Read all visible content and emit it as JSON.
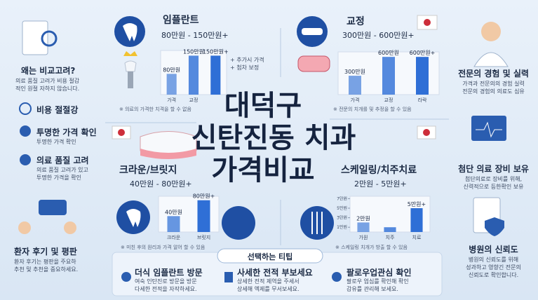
{
  "title": [
    "대덕구",
    "신탄진동 치과",
    "가격비교"
  ],
  "left": {
    "why": {
      "title": "왜는 비교고려?",
      "text": [
        "의료 품질 고려가 비용 절감",
        "적인 원절 자하지 않습니다."
      ]
    },
    "items": [
      {
        "title": "비용 절절강",
        "text": []
      },
      {
        "title": "투명한 가격 확인",
        "text": [
          "투명한 가격 확인"
        ]
      },
      {
        "title": "의료 품질 고려",
        "text": [
          "의료 품질 고려가 있고",
          "투명한 가격을 확인"
        ]
      }
    ],
    "reviews": {
      "title": "환자 후기 및 평판",
      "text": [
        "환자 후기는 평판을 주요하",
        "추천 및 추천을 중요하세요."
      ]
    }
  },
  "panels": [
    {
      "name": "임플란트",
      "range": "80만원 - 150만원+",
      "note": [
        "+ 추가시 가격",
        "+ 첨차 보정"
      ],
      "footnote": "※ 의료의 가격한 치격을 할 수 없음",
      "chart": {
        "type": "bar",
        "color": "#2f6fd6",
        "categories": [
          "가격",
          "교정",
          null
        ],
        "values": [
          80,
          150,
          150
        ],
        "value_labels": [
          "80만원",
          "150만원",
          "150만원+"
        ],
        "ylim": [
          0,
          170
        ]
      }
    },
    {
      "name": "교정",
      "range": "300만원 - 600만원+",
      "note": [],
      "footnote": "※ 전문의 치개를 및 추정을 할 수 있음",
      "chart": {
        "type": "bar",
        "color": "#2f6fd6",
        "categories": [
          "가격",
          "교정",
          "라락"
        ],
        "values": [
          300,
          600,
          600
        ],
        "value_labels": [
          "300만원",
          "600만원",
          "600만원+"
        ],
        "ylim": [
          0,
          680
        ]
      }
    },
    {
      "name": "크라운/브릿지",
      "range": "40만원 - 80만원+",
      "note": [],
      "footnote": "※ 미친 후의 원리과 가격 알어 할 수 있음",
      "chart": {
        "type": "bar",
        "color": "#2f6fd6",
        "categories": [
          "크라운",
          "브릿지"
        ],
        "values": [
          40,
          80
        ],
        "value_labels": [
          "40만원",
          "80만원+"
        ],
        "ylim": [
          0,
          90
        ]
      }
    },
    {
      "name": "스케일링/치주치료",
      "range": "2만원 - 5만원+",
      "note": [],
      "footnote": "※ 스케일링 치개가 방출 할 수 있음",
      "chart": {
        "type": "bar",
        "color": "#2f6fd6",
        "categories": [
          "가원",
          "치주",
          "치료"
        ],
        "values": [
          2,
          1,
          5
        ],
        "value_labels": [
          "2만원",
          null,
          "5만원+"
        ],
        "ylim": [
          0,
          7.5
        ],
        "yticks": [
          {
            "value": 1,
            "label": "1만원"
          },
          {
            "value": 3,
            "label": "3만원"
          },
          {
            "value": 5,
            "label": "5만원"
          },
          {
            "value": 7,
            "label": "7만원"
          }
        ]
      }
    }
  ],
  "right": [
    {
      "title": "전문의 경험 및 실력",
      "text": [
        "가격과 전문의의 경험 실력",
        "전문의 경험의 의료도 심유"
      ]
    },
    {
      "title": "첨단 의료 장비 보유",
      "text": [
        "첨단의료로 장비를 위해,",
        "신력적으로 등한확인 보유"
      ]
    },
    {
      "title": "병원의 신뢰도",
      "text": [
        "병원의 신뢰도를 위해",
        "성과하고 영향긴 전문의",
        "신뢰도로 확인합니다."
      ]
    }
  ],
  "tips": {
    "heading": "선택하는 티팁",
    "items": [
      {
        "title": "더식 임플란트 방문",
        "text": [
          "여숙 인탄진로 방문을 방문",
          "다세한 전적을 자작하세요."
        ]
      },
      {
        "title": "사세한 전적 부보세요",
        "text": [
          "상세한 전적 제역을 주세서",
          "상세해 엑제를 무서보세요."
        ]
      },
      {
        "title": "팔로우업관심 확인",
        "text": [
          "팔로우 업심를 확인해 확인",
          "감유를 관리해 보세요."
        ]
      }
    ]
  }
}
